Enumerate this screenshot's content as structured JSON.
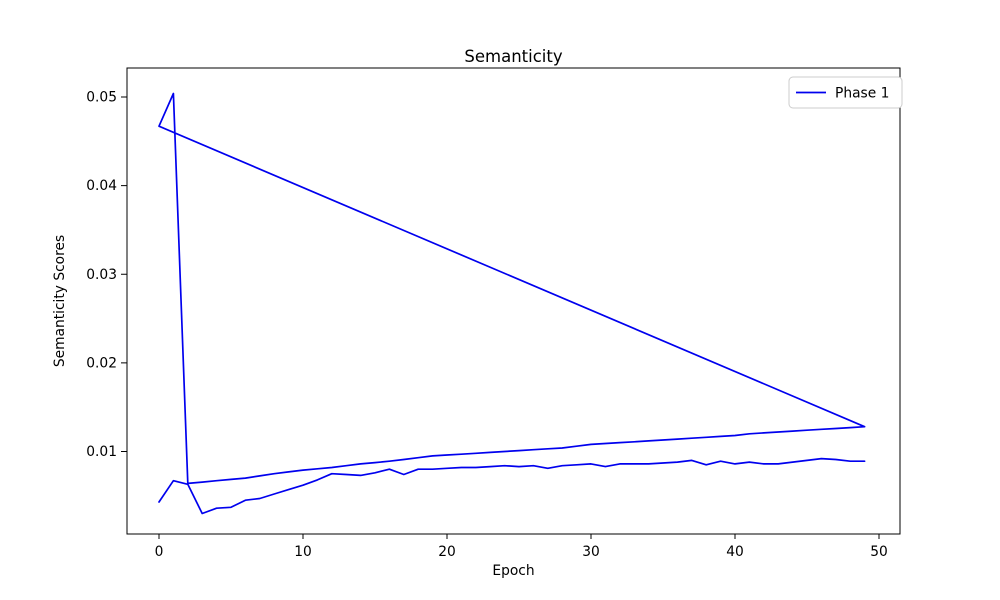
{
  "figure": {
    "background": "#ffffff",
    "spine_color": "#000000",
    "legend": {
      "entries": [
        {
          "label": "Phase 1",
          "color": "#0000ee"
        }
      ],
      "border_color": "#cccccc",
      "background": "#ffffff"
    }
  },
  "chart_data": {
    "type": "line",
    "title": "Semanticity",
    "xlabel": "Epoch",
    "ylabel": "Semanticity Scores",
    "legend_position": "upper right",
    "grid": false,
    "line_color": "#0000ee",
    "xlim": [
      0,
      50
    ],
    "ylim": [
      0.001,
      0.053
    ],
    "xticks": [
      0,
      10,
      20,
      30,
      40,
      50
    ],
    "xtick_labels": [
      "0",
      "10",
      "20",
      "30",
      "40",
      "50"
    ],
    "yticks": [
      0.01,
      0.02,
      0.03,
      0.04,
      0.05
    ],
    "ytick_labels": [
      "0.01",
      "0.02",
      "0.03",
      "0.04",
      "0.05"
    ],
    "series": [
      {
        "name": "Phase 1",
        "segment": "loop-trace",
        "closed": true,
        "x": [
          0,
          1,
          2,
          3,
          4,
          5,
          6,
          7,
          8,
          9,
          10,
          11,
          12,
          13,
          14,
          15,
          16,
          17,
          18,
          19,
          20,
          21,
          22,
          23,
          24,
          25,
          26,
          27,
          28,
          29,
          30,
          31,
          32,
          33,
          34,
          35,
          36,
          37,
          38,
          39,
          40,
          41,
          42,
          43,
          44,
          45,
          46,
          47,
          48,
          49
        ],
        "y": [
          0.0467,
          0.0504,
          0.0064,
          0.00655,
          0.0067,
          0.00685,
          0.007,
          0.00725,
          0.0075,
          0.0077,
          0.0079,
          0.00805,
          0.0082,
          0.0084,
          0.0086,
          0.00875,
          0.0089,
          0.0091,
          0.0093,
          0.0095,
          0.0096,
          0.0097,
          0.0098,
          0.0099,
          0.01,
          0.0101,
          0.0102,
          0.0103,
          0.0104,
          0.0106,
          0.0108,
          0.0109,
          0.011,
          0.0111,
          0.0112,
          0.0113,
          0.0114,
          0.0115,
          0.0116,
          0.0117,
          0.0118,
          0.012,
          0.0121,
          0.0122,
          0.0123,
          0.0124,
          0.0125,
          0.0126,
          0.0127,
          0.0128
        ]
      },
      {
        "name": "Phase 1",
        "segment": "noisy-run",
        "closed": false,
        "x": [
          0,
          1,
          2,
          3,
          4,
          5,
          6,
          7,
          8,
          9,
          10,
          11,
          12,
          13,
          14,
          15,
          16,
          17,
          18,
          19,
          20,
          21,
          22,
          23,
          24,
          25,
          26,
          27,
          28,
          29,
          30,
          31,
          32,
          33,
          34,
          35,
          36,
          37,
          38,
          39,
          40,
          41,
          42,
          43,
          44,
          45,
          46,
          47,
          48,
          49
        ],
        "y": [
          0.0043,
          0.0067,
          0.0063,
          0.003,
          0.0036,
          0.0037,
          0.0045,
          0.0047,
          0.0052,
          0.0057,
          0.0062,
          0.0068,
          0.0075,
          0.0074,
          0.0073,
          0.0076,
          0.008,
          0.0074,
          0.008,
          0.008,
          0.0081,
          0.0082,
          0.0082,
          0.0083,
          0.0084,
          0.0083,
          0.0084,
          0.0081,
          0.0084,
          0.0085,
          0.0086,
          0.0083,
          0.0086,
          0.0086,
          0.0086,
          0.0087,
          0.0088,
          0.009,
          0.0085,
          0.0089,
          0.0086,
          0.0088,
          0.0086,
          0.0086,
          0.0088,
          0.009,
          0.0092,
          0.0091,
          0.0089,
          0.0089
        ]
      }
    ]
  }
}
